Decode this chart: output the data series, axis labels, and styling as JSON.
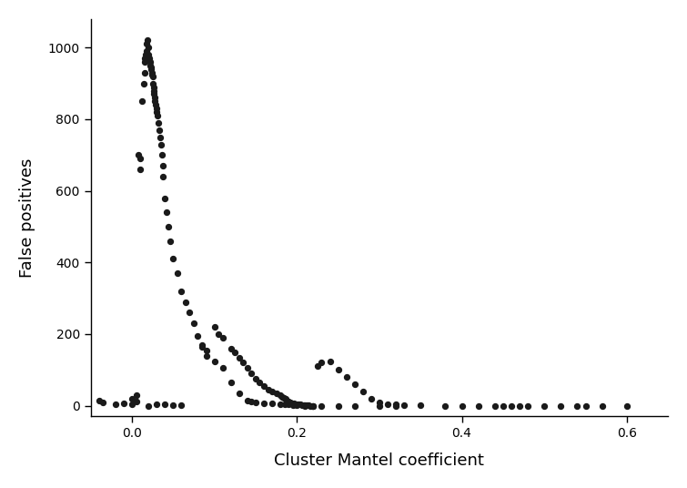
{
  "title": "",
  "xlabel": "Cluster Mantel coefficient",
  "ylabel": "False positives",
  "xlim": [
    -0.05,
    0.65
  ],
  "ylim": [
    -30,
    1080
  ],
  "xticks": [
    0.0,
    0.2,
    0.4,
    0.6
  ],
  "yticks": [
    0,
    200,
    400,
    600,
    800,
    1000
  ],
  "background_color": "#ffffff",
  "dot_color": "#1a1a1a",
  "dot_size": 18,
  "x": [
    -0.04,
    -0.035,
    -0.02,
    -0.01,
    0.0,
    0.0,
    0.005,
    0.005,
    0.008,
    0.01,
    0.01,
    0.012,
    0.014,
    0.015,
    0.015,
    0.016,
    0.017,
    0.018,
    0.018,
    0.019,
    0.02,
    0.02,
    0.02,
    0.021,
    0.021,
    0.022,
    0.022,
    0.023,
    0.023,
    0.024,
    0.024,
    0.025,
    0.025,
    0.026,
    0.026,
    0.027,
    0.028,
    0.028,
    0.029,
    0.03,
    0.03,
    0.031,
    0.032,
    0.033,
    0.034,
    0.035,
    0.036,
    0.037,
    0.038,
    0.04,
    0.042,
    0.044,
    0.046,
    0.05,
    0.055,
    0.06,
    0.065,
    0.07,
    0.075,
    0.08,
    0.085,
    0.09,
    0.1,
    0.105,
    0.11,
    0.12,
    0.125,
    0.13,
    0.135,
    0.14,
    0.145,
    0.15,
    0.155,
    0.16,
    0.165,
    0.17,
    0.175,
    0.18,
    0.182,
    0.184,
    0.186,
    0.188,
    0.19,
    0.192,
    0.194,
    0.196,
    0.198,
    0.2,
    0.202,
    0.204,
    0.206,
    0.208,
    0.21,
    0.212,
    0.214,
    0.216,
    0.218,
    0.22,
    0.225,
    0.23,
    0.24,
    0.25,
    0.26,
    0.27,
    0.28,
    0.29,
    0.3,
    0.31,
    0.32,
    0.33,
    0.35,
    0.38,
    0.4,
    0.42,
    0.44,
    0.45,
    0.46,
    0.47,
    0.48,
    0.5,
    0.52,
    0.54,
    0.55,
    0.57,
    0.6,
    0.02,
    0.03,
    0.04,
    0.05,
    0.06,
    0.085,
    0.09,
    0.1,
    0.11,
    0.12,
    0.13,
    0.14,
    0.145,
    0.15,
    0.16,
    0.17,
    0.18,
    0.185,
    0.19,
    0.195,
    0.2,
    0.21,
    0.22,
    0.23,
    0.25,
    0.27,
    0.3,
    0.32
  ],
  "y": [
    15,
    10,
    5,
    8,
    20,
    5,
    30,
    12,
    700,
    690,
    660,
    850,
    900,
    930,
    960,
    970,
    980,
    990,
    1010,
    1020,
    1000,
    980,
    975,
    970,
    965,
    960,
    950,
    945,
    940,
    930,
    925,
    920,
    900,
    890,
    880,
    870,
    860,
    850,
    840,
    830,
    820,
    810,
    790,
    770,
    750,
    730,
    700,
    670,
    640,
    580,
    540,
    500,
    460,
    410,
    370,
    320,
    290,
    260,
    230,
    195,
    170,
    140,
    220,
    200,
    190,
    160,
    150,
    135,
    120,
    105,
    90,
    75,
    65,
    55,
    45,
    40,
    35,
    30,
    25,
    22,
    20,
    15,
    12,
    10,
    8,
    7,
    5,
    4,
    3,
    3,
    2,
    2,
    1,
    1,
    1,
    0,
    0,
    0,
    110,
    120,
    125,
    100,
    80,
    60,
    40,
    20,
    10,
    5,
    3,
    2,
    1,
    0,
    0,
    0,
    0,
    0,
    0,
    0,
    0,
    0,
    0,
    0,
    0,
    0,
    0,
    0,
    5,
    3,
    2,
    1,
    165,
    155,
    125,
    105,
    65,
    35,
    15,
    12,
    10,
    8,
    6,
    5,
    4,
    3,
    2,
    1,
    0,
    0,
    0,
    0,
    0,
    0,
    0
  ]
}
